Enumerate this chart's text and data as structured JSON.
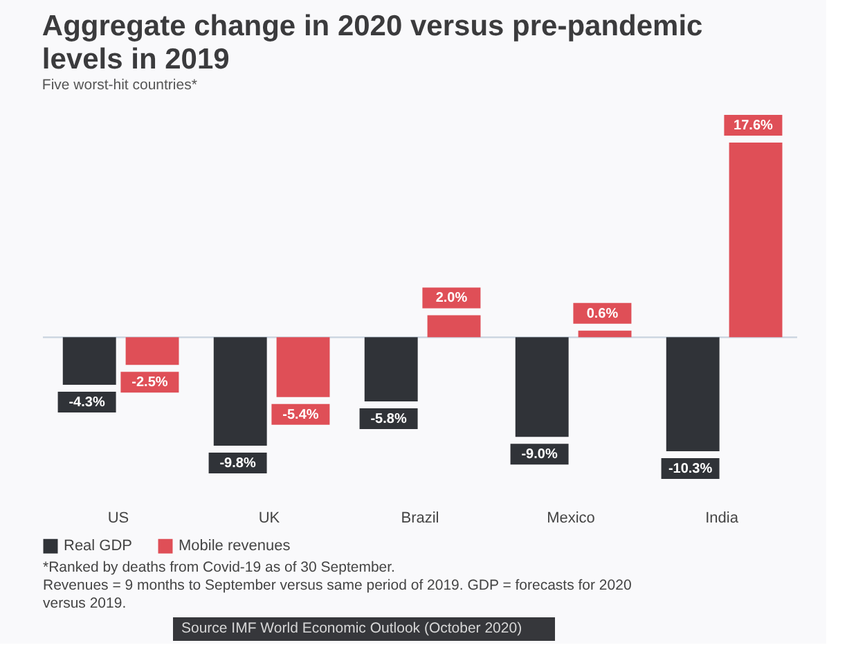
{
  "chart_data": {
    "type": "bar",
    "title": "Aggregate change in 2020 versus pre-pandemic levels in 2019",
    "subtitle": "Five worst-hit countries*",
    "categories": [
      "US",
      "UK",
      "Brazil",
      "Mexico",
      "India"
    ],
    "series": [
      {
        "name": "Real GDP",
        "color": "#303338",
        "values": [
          -4.3,
          -9.8,
          -5.8,
          -9.0,
          -10.3
        ],
        "value_labels": [
          "-4.3%",
          "-9.8%",
          "-5.8%",
          "-9.0%",
          "-10.3%"
        ]
      },
      {
        "name": "Mobile revenues",
        "color": "#df4f57",
        "values": [
          -2.5,
          -5.4,
          2.0,
          0.6,
          17.6
        ],
        "value_labels": [
          "-2.5%",
          "-5.4%",
          "2.0%",
          "0.6%",
          "17.6%"
        ]
      }
    ],
    "ref_lines": [
      {
        "axis": "y",
        "value": 0,
        "color": "#c9d3df"
      }
    ],
    "legend": "bottom left",
    "tick_labels": "x",
    "annotations": [
      "*Ranked by deaths from Covid-19 as of 30 September.",
      "Revenues = 9 months to September versus same period of 2019. GDP = forecasts for 2020 versus 2019.",
      "Source IMF World Economic Outlook (October 2020)"
    ]
  }
}
